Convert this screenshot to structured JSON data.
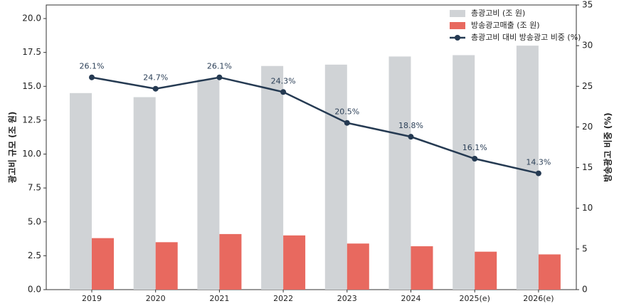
{
  "chart_data": {
    "type": "bar-line",
    "categories": [
      "2019",
      "2020",
      "2021",
      "2022",
      "2023",
      "2024",
      "2025(e)",
      "2026(e)"
    ],
    "series": [
      {
        "name": "총광고비 (조 원)",
        "type": "bar",
        "color": "#d0d3d6",
        "values": [
          14.5,
          14.2,
          15.5,
          16.5,
          16.6,
          17.2,
          17.3,
          18.0
        ]
      },
      {
        "name": "방송광고매출 (조 원)",
        "type": "bar",
        "color": "#e8695f",
        "values": [
          3.8,
          3.5,
          4.1,
          4.0,
          3.4,
          3.2,
          2.8,
          2.6
        ]
      },
      {
        "name": "총광고비 대비 방송광고 비중 (%)",
        "type": "line",
        "axis": "y2",
        "color": "#253a52",
        "values": [
          26.1,
          24.7,
          26.1,
          24.3,
          20.5,
          18.8,
          16.1,
          14.3
        ],
        "value_labels": [
          "26.1%",
          "24.7%",
          "26.1%",
          "24.3%",
          "20.5%",
          "18.8%",
          "16.1%",
          "14.3%"
        ]
      }
    ],
    "ylabel": "광고비 규모 (조 원)",
    "y2label": "방송광고 비중 (%)",
    "ylim": [
      0,
      21
    ],
    "yticks": [
      {
        "value": 0,
        "label": "0.0"
      },
      {
        "value": 2.5,
        "label": "2.5"
      },
      {
        "value": 5,
        "label": "5.0"
      },
      {
        "value": 7.5,
        "label": "7.5"
      },
      {
        "value": 10,
        "label": "10.0"
      },
      {
        "value": 12.5,
        "label": "12.5"
      },
      {
        "value": 15,
        "label": "15.0"
      },
      {
        "value": 17.5,
        "label": "17.5"
      },
      {
        "value": 20,
        "label": "20.0"
      }
    ],
    "y2lim": [
      0,
      35
    ],
    "y2ticks": [
      0,
      5,
      10,
      15,
      20,
      25,
      30,
      35
    ],
    "legend": "upper right"
  }
}
